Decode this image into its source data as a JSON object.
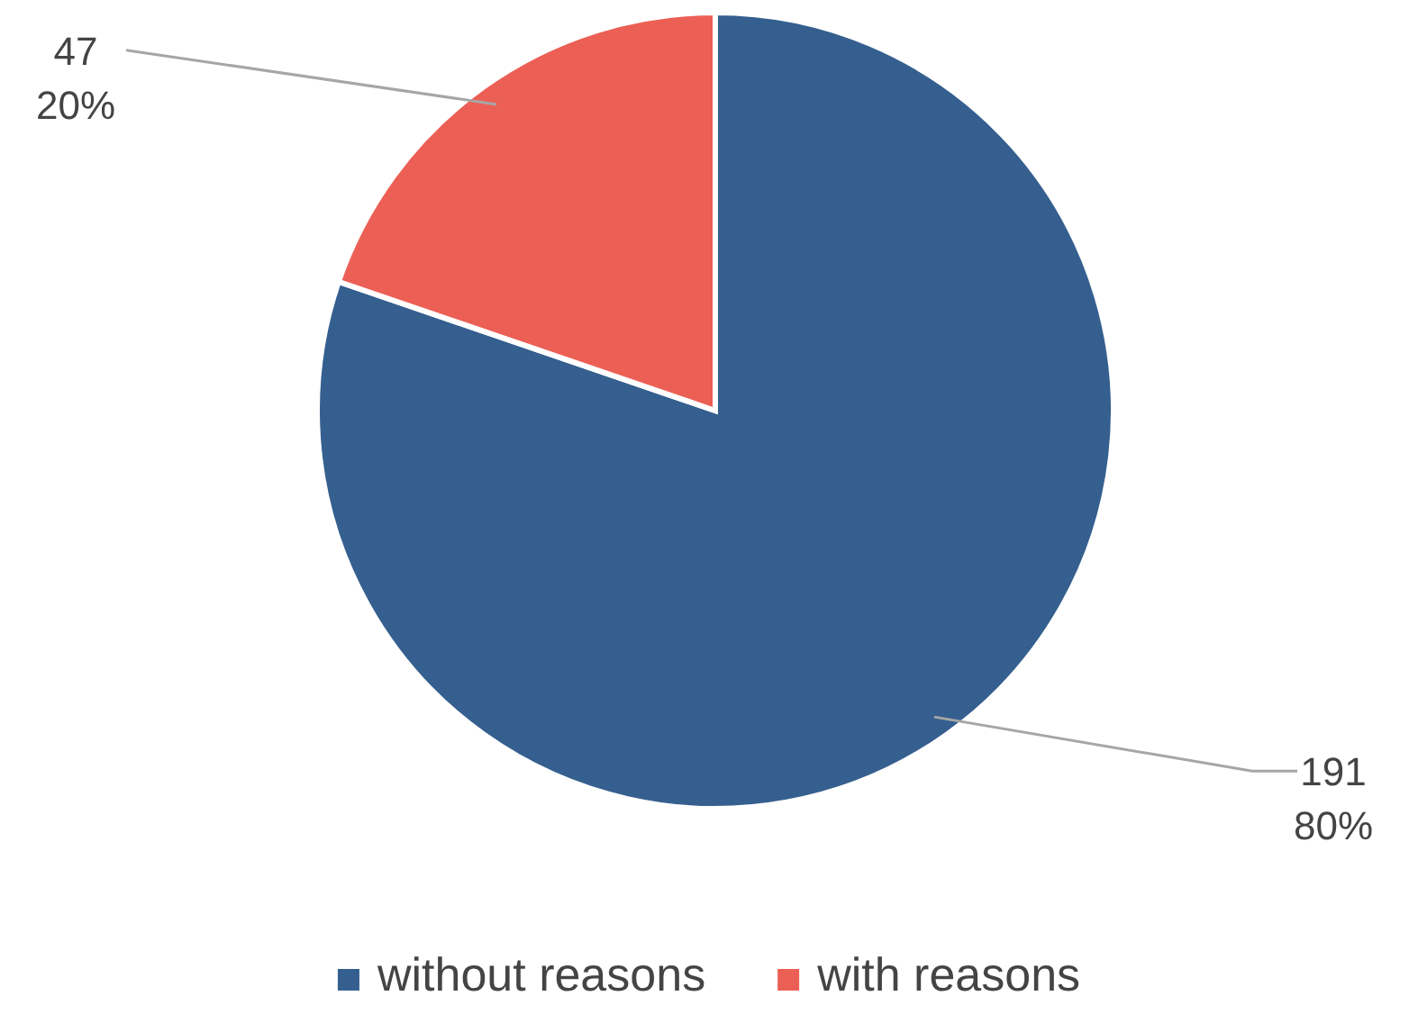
{
  "chart_data": {
    "type": "pie",
    "categories": [
      "without reasons",
      "with reasons"
    ],
    "values": [
      191,
      47
    ],
    "colors": [
      "#355f8f",
      "#ec5f55"
    ],
    "value_labels": [
      "191\n80%",
      "47\n20%"
    ],
    "legend": "bottom"
  }
}
